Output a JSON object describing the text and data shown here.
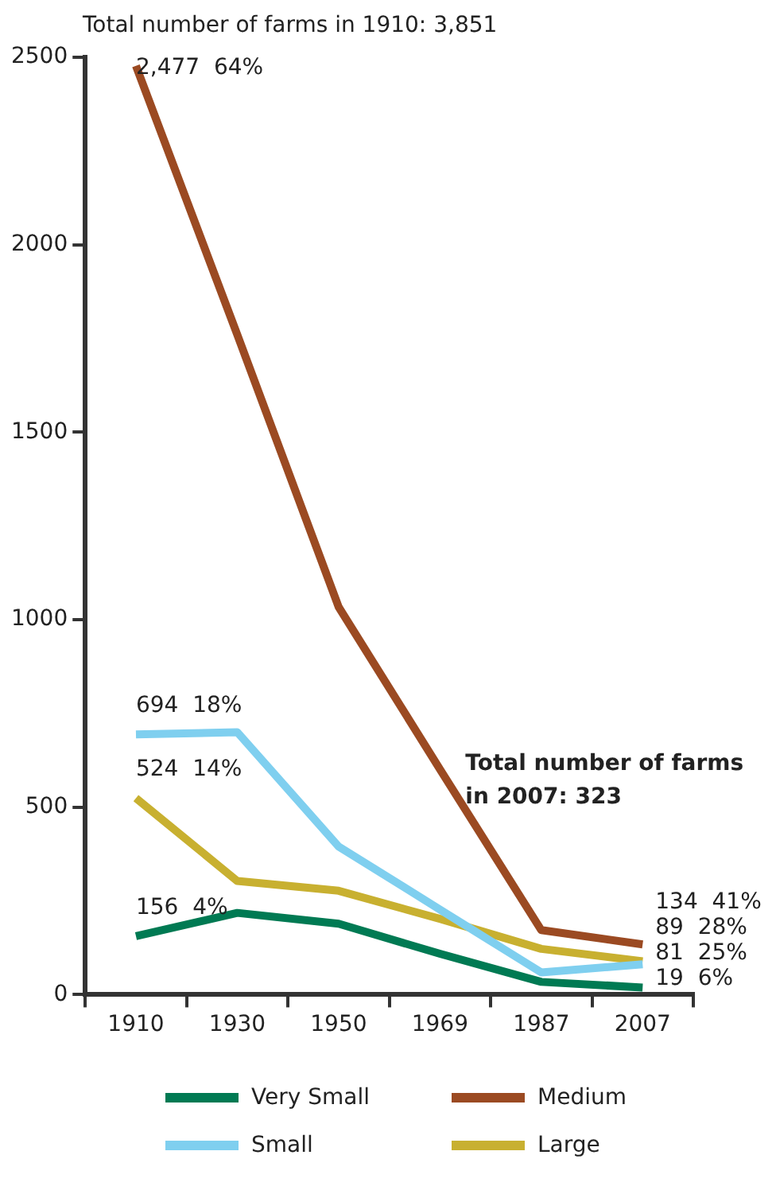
{
  "chart_data": {
    "type": "line",
    "categories": [
      "1910",
      "1930",
      "1950",
      "1969",
      "1987",
      "2007"
    ],
    "series": [
      {
        "name": "Very Small",
        "color": "#007a53",
        "values": [
          156,
          218,
          189,
          109,
          34,
          19
        ],
        "value_labels": [
          "156  4%",
          null,
          null,
          null,
          null,
          "19  6%"
        ]
      },
      {
        "name": "Medium",
        "color": "#9b4a22",
        "values": [
          2477,
          1760,
          1034,
          601,
          172,
          134
        ],
        "value_labels": [
          "2,477  64%",
          null,
          null,
          null,
          null,
          "134  41%"
        ]
      },
      {
        "name": "Small",
        "color": "#7fcfef",
        "values": [
          694,
          700,
          395,
          227,
          59,
          81
        ],
        "value_labels": [
          "694  18%",
          null,
          null,
          null,
          null,
          "81  25%"
        ]
      },
      {
        "name": "Large",
        "color": "#c8b030",
        "values": [
          524,
          303,
          277,
          202,
          122,
          89
        ],
        "value_labels": [
          "524  14%",
          null,
          null,
          null,
          null,
          "89  28%"
        ]
      }
    ],
    "ylim": [
      0,
      2500
    ],
    "yticks": [
      0,
      500,
      1000,
      1500,
      2000,
      2500
    ],
    "grid": false,
    "legend": "bottom",
    "marker": "none",
    "line_style": "solid",
    "annotations": [
      "Total number of farms in 1910: 3,851",
      "Total number of farms in 2007: 323"
    ]
  }
}
